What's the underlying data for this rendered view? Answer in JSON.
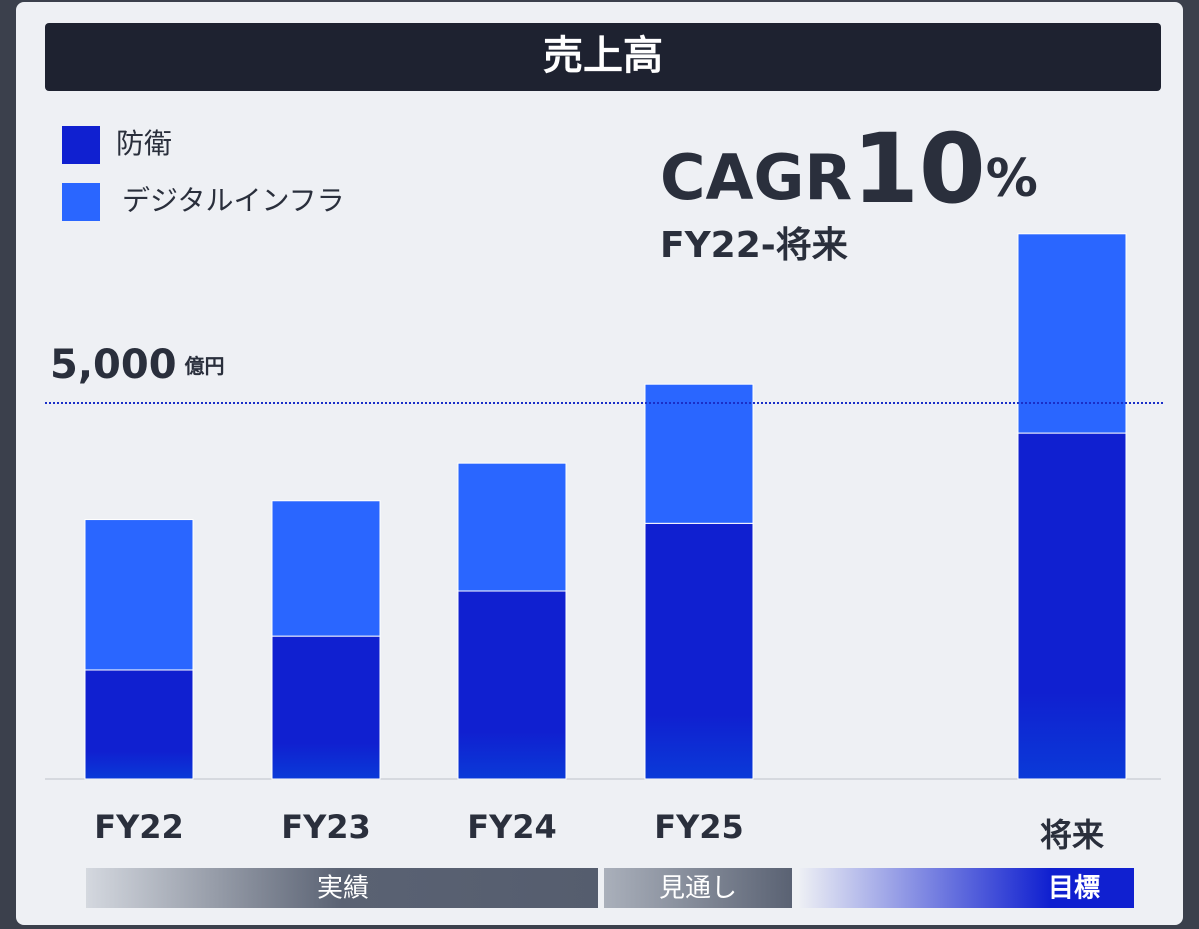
{
  "chart_data": {
    "type": "stacked-bar",
    "title": "売上高",
    "categories": [
      "FY22",
      "FY23",
      "FY24",
      "FY25",
      "将来"
    ],
    "series": [
      {
        "name": "防衛",
        "color": "#1020d0",
        "values": [
          1450,
          1900,
          2500,
          3400,
          4600
        ]
      },
      {
        "name": "デジタルインフラ",
        "color": "#2a66ff",
        "values": [
          2000,
          1800,
          1700,
          1850,
          2650
        ]
      }
    ],
    "ylim": [
      0,
      7500
    ],
    "reference": {
      "value": 5000,
      "label": "5,000",
      "unit": "億円"
    },
    "annotation": {
      "prefix": "CAGR",
      "number": "10",
      "suffix": "%",
      "period": "FY22-将来"
    },
    "periods": [
      {
        "label": "実績"
      },
      {
        "label": "見通し"
      },
      {
        "label": "目標"
      }
    ]
  }
}
